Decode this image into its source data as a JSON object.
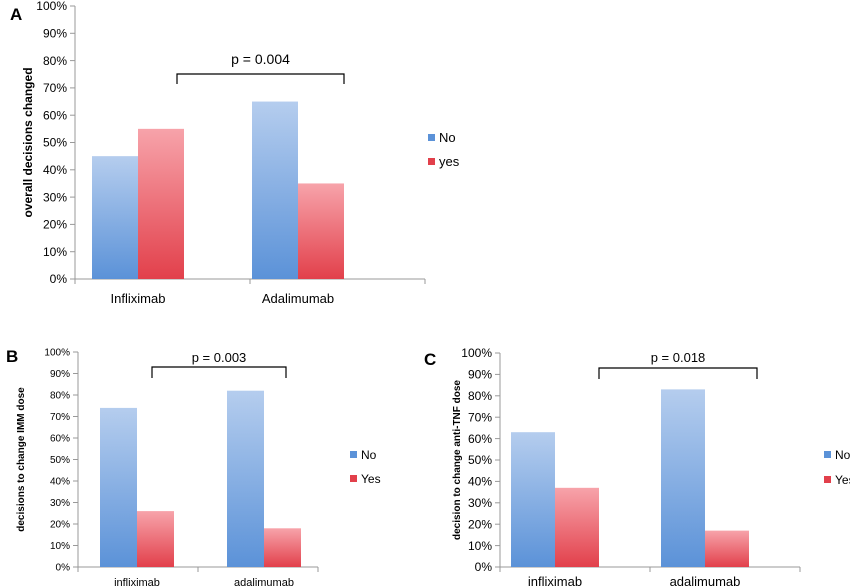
{
  "chart_data": [
    {
      "type": "bar",
      "panel": "A",
      "ylabel": "overall decisions changed",
      "categories": [
        "Infliximab",
        "Adalimumab"
      ],
      "series": [
        {
          "name": "No",
          "values": [
            45,
            65
          ]
        },
        {
          "name": "yes",
          "values": [
            55,
            35
          ]
        }
      ],
      "ylim": [
        0,
        100
      ],
      "yticks": [
        "0%",
        "10%",
        "20%",
        "30%",
        "40%",
        "50%",
        "60%",
        "70%",
        "80%",
        "90%",
        "100%"
      ],
      "annotation": "p = 0.004",
      "legend": "right",
      "grid": false
    },
    {
      "type": "bar",
      "panel": "B",
      "ylabel": "decisions to change IMM dose",
      "categories": [
        "infliximab",
        "adalimumab"
      ],
      "series": [
        {
          "name": "No",
          "values": [
            74,
            82
          ]
        },
        {
          "name": "Yes",
          "values": [
            26,
            18
          ]
        }
      ],
      "ylim": [
        0,
        100
      ],
      "yticks": [
        "0%",
        "10%",
        "20%",
        "30%",
        "40%",
        "50%",
        "60%",
        "70%",
        "80%",
        "90%",
        "100%"
      ],
      "annotation": "p = 0.003",
      "legend": "right",
      "grid": false
    },
    {
      "type": "bar",
      "panel": "C",
      "ylabel": "decision to change anti-TNF dose",
      "categories": [
        "infliximab",
        "adalimumab"
      ],
      "series": [
        {
          "name": "No",
          "values": [
            63,
            83
          ]
        },
        {
          "name": "Yes",
          "values": [
            37,
            17
          ]
        }
      ],
      "ylim": [
        0,
        100
      ],
      "yticks": [
        "0%",
        "10%",
        "20%",
        "30%",
        "40%",
        "50%",
        "60%",
        "70%",
        "80%",
        "90%",
        "100%"
      ],
      "annotation": "p = 0.018",
      "legend": "right",
      "grid": false
    }
  ],
  "colors": {
    "no_top": "#b5cdee",
    "no_bottom": "#5b92d8",
    "yes_top": "#f7a3aa",
    "yes_bottom": "#e2404b",
    "axis": "#999999"
  }
}
